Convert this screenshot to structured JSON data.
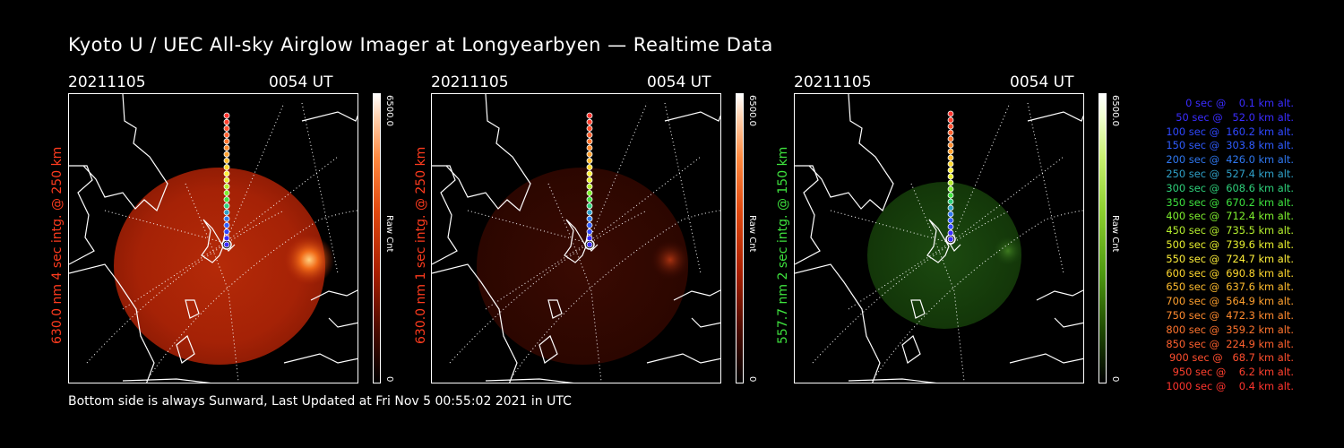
{
  "title": "Kyoto U / UEC All-sky Airglow Imager at Longyearbyen — Realtime Data",
  "footer": "Bottom side is always Sunward, Last Updated at Fri Nov  5 00:55:02 2021 in UTC",
  "panels": [
    {
      "date": "20211105",
      "time": "0054 UT",
      "label": "630.0 nm 4 sec intg. @ 250 km",
      "label_color": "#ff3b1e",
      "cb_max": "6500.0",
      "cb_min": "0",
      "cb_unit": "Raw Cnt"
    },
    {
      "date": "20211105",
      "time": "0054 UT",
      "label": "630.0 nm 1 sec intg. @ 250 km",
      "label_color": "#ff3b1e",
      "cb_max": "6500.0",
      "cb_min": "0",
      "cb_unit": "Raw Cnt"
    },
    {
      "date": "20211105",
      "time": "0054 UT",
      "label": "557.7 nm 2 sec intg. @ 150 km",
      "label_color": "#3ee23e",
      "cb_max": "6500.0",
      "cb_min": "0",
      "cb_unit": "Raw Cnt"
    }
  ],
  "legend": [
    {
      "text": "   0 sec @    0.1 km alt.",
      "color": "#3a2cff"
    },
    {
      "text": "  50 sec @   52.0 km alt.",
      "color": "#3a2cff"
    },
    {
      "text": " 100 sec @  160.2 km alt.",
      "color": "#2f48ff"
    },
    {
      "text": " 150 sec @  303.8 km alt.",
      "color": "#2f5cff"
    },
    {
      "text": " 200 sec @  426.0 km alt.",
      "color": "#2f78f0"
    },
    {
      "text": " 250 sec @  527.4 km alt.",
      "color": "#2fa0c8"
    },
    {
      "text": " 300 sec @  608.6 km alt.",
      "color": "#2ed07a"
    },
    {
      "text": " 350 sec @  670.2 km alt.",
      "color": "#3ee23e"
    },
    {
      "text": " 400 sec @  712.4 km alt.",
      "color": "#7ef02e"
    },
    {
      "text": " 450 sec @  735.5 km alt.",
      "color": "#b6f02e"
    },
    {
      "text": " 500 sec @  739.6 km alt.",
      "color": "#e8f02e"
    },
    {
      "text": " 550 sec @  724.7 km alt.",
      "color": "#fff03a"
    },
    {
      "text": " 600 sec @  690.8 km alt.",
      "color": "#ffd82e"
    },
    {
      "text": " 650 sec @  637.6 km alt.",
      "color": "#ffbc2e"
    },
    {
      "text": " 700 sec @  564.9 km alt.",
      "color": "#ffa02e"
    },
    {
      "text": " 750 sec @  472.3 km alt.",
      "color": "#ff8a2e"
    },
    {
      "text": " 800 sec @  359.2 km alt.",
      "color": "#ff742e"
    },
    {
      "text": " 850 sec @  224.9 km alt.",
      "color": "#ff602e"
    },
    {
      "text": " 900 sec @   68.7 km alt.",
      "color": "#ff4e2e"
    },
    {
      "text": " 950 sec @    6.2 km alt.",
      "color": "#ff402e"
    },
    {
      "text": "1000 sec @    0.4 km alt.",
      "color": "#ff342e"
    }
  ],
  "colors": {
    "background": "#000000",
    "frame": "#ffffff",
    "glow_red": "#c82a08",
    "glow_green": "#2f6a18"
  }
}
